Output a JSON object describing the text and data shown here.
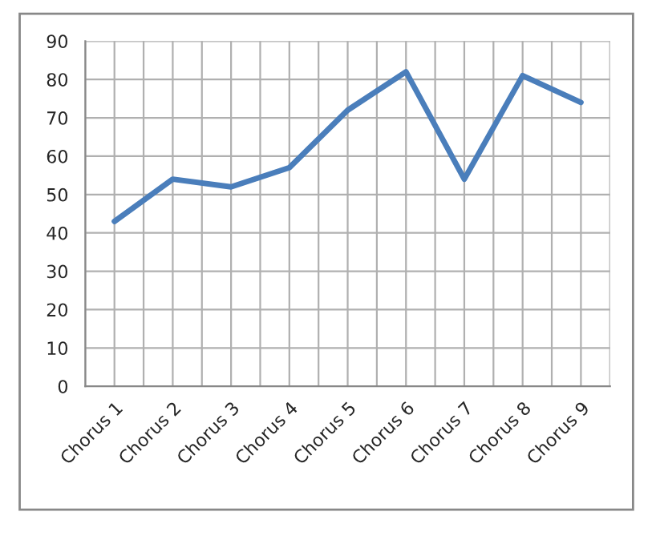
{
  "chart_data": {
    "type": "line",
    "categories": [
      "Chorus 1",
      "Chorus 2",
      "Chorus 3",
      "Chorus 4",
      "Chorus 5",
      "Chorus 6",
      "Chorus 7",
      "Chorus 8",
      "Chorus 9"
    ],
    "series": [
      {
        "color": "#4a7ebb",
        "values": [
          43,
          54,
          52,
          57,
          72,
          82,
          54,
          81,
          74
        ]
      }
    ],
    "ylim": [
      0,
      90
    ],
    "yticks": [
      0,
      10,
      20,
      30,
      40,
      50,
      60,
      70,
      80,
      90
    ],
    "grid": true,
    "marker": "none",
    "line_style": "solid"
  }
}
